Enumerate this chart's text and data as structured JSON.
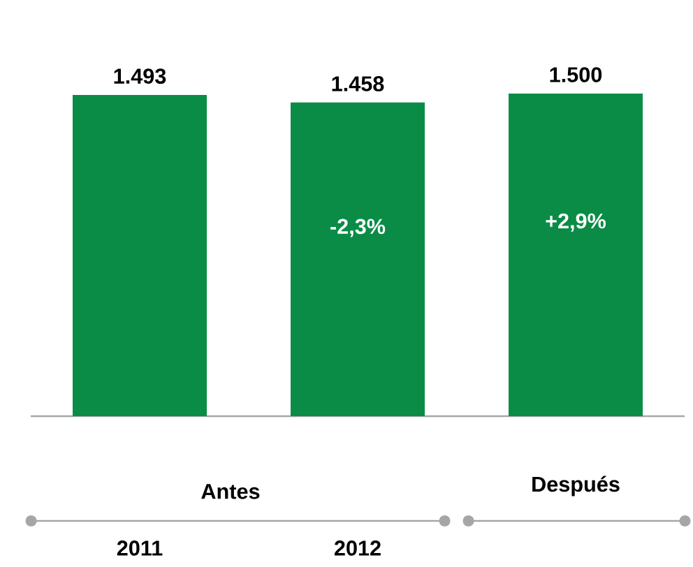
{
  "chart_data": {
    "type": "bar",
    "categories": [
      "2011",
      "2012",
      null
    ],
    "values": [
      1493,
      1458,
      1500
    ],
    "value_labels": [
      "1.493",
      "1.458",
      "1.500"
    ],
    "color": "#0a8c46",
    "annotations": [
      "Antes",
      "Después",
      "-2,3%",
      "+2,9%"
    ]
  }
}
